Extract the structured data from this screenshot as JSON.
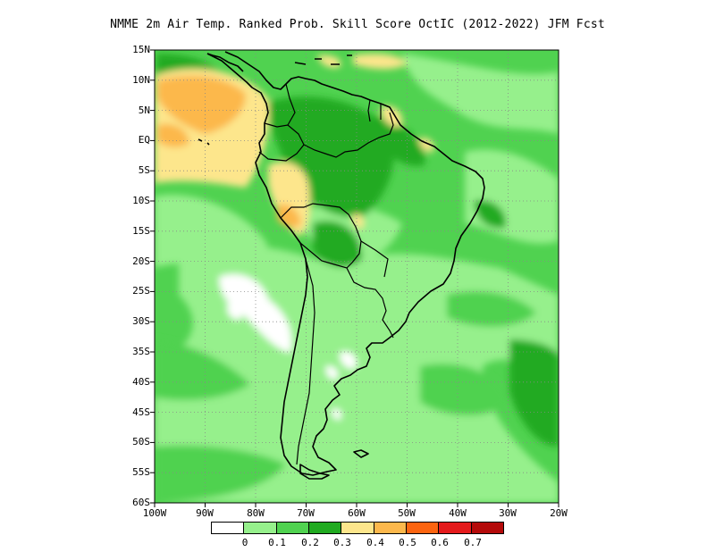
{
  "title": "NMME  2m Air Temp. Ranked Prob. Skill Score OctIC (2012-2022) JFM Fcst",
  "lat_labels": [
    "15N",
    "10N",
    "5N",
    "EQ",
    "5S",
    "10S",
    "15S",
    "20S",
    "25S",
    "30S",
    "35S",
    "40S",
    "45S",
    "50S",
    "55S",
    "60S"
  ],
  "lon_labels": [
    "100W",
    "90W",
    "80W",
    "70W",
    "60W",
    "50W",
    "40W",
    "30W",
    "20W"
  ],
  "colorbar": {
    "colors": [
      "#ffffff",
      "#96f08c",
      "#50d250",
      "#20aa20",
      "#fde68c",
      "#fcb84c",
      "#fc6410",
      "#e41a1c",
      "#b40a0a"
    ],
    "labels": [
      "0",
      "0.1",
      "0.2",
      "0.3",
      "0.4",
      "0.5",
      "0.6",
      "0.7"
    ]
  },
  "map": {
    "region": "South America",
    "lat_range": [
      "15N",
      "60S"
    ],
    "lon_range": [
      "100W",
      "20W"
    ],
    "grid": "dotted"
  }
}
